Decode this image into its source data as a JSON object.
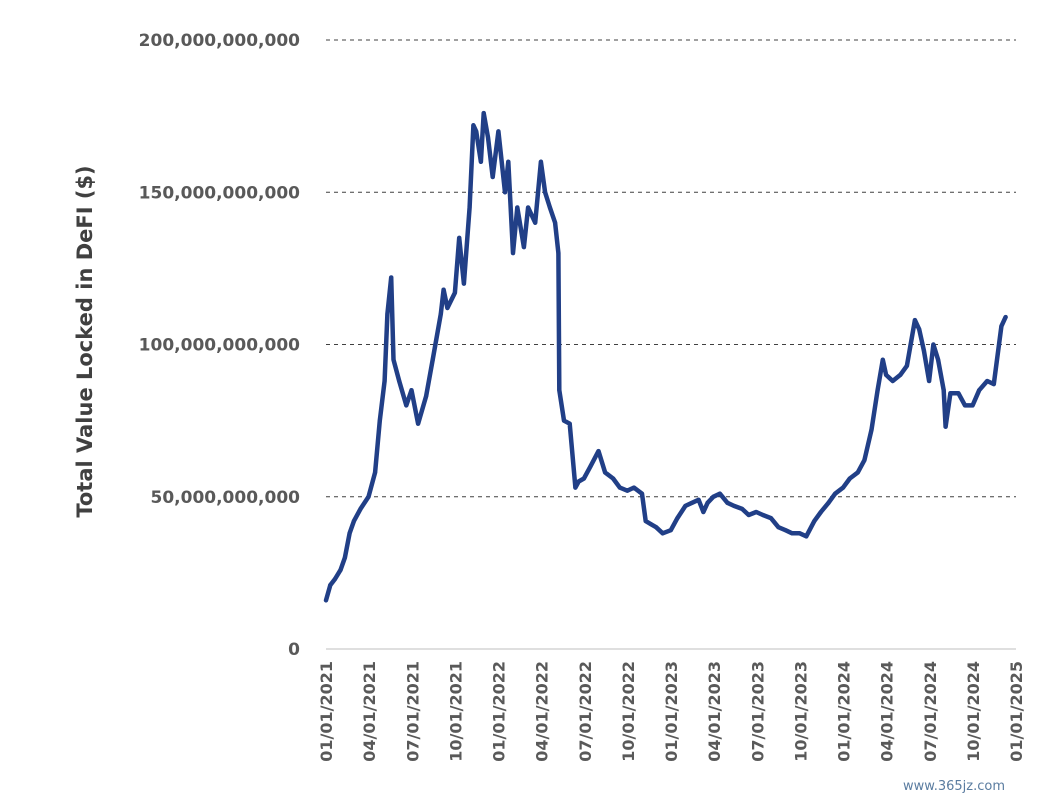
{
  "chart_data": {
    "type": "line",
    "ylabel": "Total Value Locked in DeFI ($)",
    "xlabel": "",
    "title": "",
    "ylim": [
      0,
      200000000000
    ],
    "yticks": [
      {
        "value": 0,
        "label": "0"
      },
      {
        "value": 50000000000,
        "label": "50,000,000,000"
      },
      {
        "value": 100000000000,
        "label": "100,000,000,000"
      },
      {
        "value": 150000000000,
        "label": "150,000,000,000"
      },
      {
        "value": 200000000000,
        "label": "200,000,000,000"
      }
    ],
    "xticks": [
      "01/01/2021",
      "04/01/2021",
      "07/01/2021",
      "10/01/2021",
      "01/01/2022",
      "04/01/2022",
      "07/01/2022",
      "10/01/2022",
      "01/01/2023",
      "04/01/2023",
      "07/01/2023",
      "10/01/2023",
      "01/01/2024",
      "04/01/2024",
      "07/01/2024",
      "10/01/2024",
      "01/01/2025"
    ],
    "xlim": [
      "2021-01-01",
      "2025-01-01"
    ],
    "grid": "horizontal dashed",
    "color": "#213f87",
    "series": [
      {
        "x": [
          "2021-01-01",
          "2021-01-10",
          "2021-01-20",
          "2021-02-01",
          "2021-02-10",
          "2021-02-20",
          "2021-03-01",
          "2021-03-15",
          "2021-04-01",
          "2021-04-15",
          "2021-04-25",
          "2021-05-05",
          "2021-05-11",
          "2021-05-19",
          "2021-05-24",
          "2021-06-05",
          "2021-06-20",
          "2021-07-01",
          "2021-07-15",
          "2021-08-01",
          "2021-08-15",
          "2021-09-01",
          "2021-09-07",
          "2021-09-15",
          "2021-10-01",
          "2021-10-10",
          "2021-10-20",
          "2021-11-01",
          "2021-11-09",
          "2021-11-15",
          "2021-11-25",
          "2021-12-01",
          "2021-12-10",
          "2021-12-20",
          "2022-01-01",
          "2022-01-15",
          "2022-01-22",
          "2022-02-01",
          "2022-02-10",
          "2022-02-24",
          "2022-03-05",
          "2022-03-20",
          "2022-04-01",
          "2022-04-10",
          "2022-04-20",
          "2022-05-01",
          "2022-05-08",
          "2022-05-10",
          "2022-05-20",
          "2022-06-01",
          "2022-06-13",
          "2022-06-20",
          "2022-07-01",
          "2022-07-15",
          "2022-08-01",
          "2022-08-15",
          "2022-09-01",
          "2022-09-15",
          "2022-10-01",
          "2022-10-15",
          "2022-11-01",
          "2022-11-09",
          "2022-11-20",
          "2022-12-01",
          "2022-12-15",
          "2023-01-01",
          "2023-01-15",
          "2023-02-01",
          "2023-02-15",
          "2023-03-01",
          "2023-03-11",
          "2023-03-20",
          "2023-04-01",
          "2023-04-15",
          "2023-05-01",
          "2023-05-15",
          "2023-06-01",
          "2023-06-15",
          "2023-07-01",
          "2023-07-15",
          "2023-08-01",
          "2023-08-17",
          "2023-09-01",
          "2023-09-15",
          "2023-10-01",
          "2023-10-15",
          "2023-11-01",
          "2023-11-15",
          "2023-12-01",
          "2023-12-15",
          "2024-01-01",
          "2024-01-15",
          "2024-02-01",
          "2024-02-15",
          "2024-03-01",
          "2024-03-14",
          "2024-03-25",
          "2024-04-01",
          "2024-04-15",
          "2024-05-01",
          "2024-05-15",
          "2024-06-01",
          "2024-06-10",
          "2024-06-20",
          "2024-07-01",
          "2024-07-10",
          "2024-07-20",
          "2024-08-01",
          "2024-08-05",
          "2024-08-15",
          "2024-09-01",
          "2024-09-15",
          "2024-10-01",
          "2024-10-15",
          "2024-11-01",
          "2024-11-15",
          "2024-12-01",
          "2024-12-10"
        ],
        "y": [
          16000000000,
          21000000000,
          23000000000,
          26000000000,
          30000000000,
          38000000000,
          42000000000,
          46000000000,
          50000000000,
          58000000000,
          75000000000,
          88000000000,
          110000000000,
          122000000000,
          95000000000,
          88000000000,
          80000000000,
          85000000000,
          74000000000,
          83000000000,
          95000000000,
          110000000000,
          118000000000,
          112000000000,
          117000000000,
          135000000000,
          120000000000,
          145000000000,
          172000000000,
          170000000000,
          160000000000,
          176000000000,
          168000000000,
          155000000000,
          170000000000,
          150000000000,
          160000000000,
          130000000000,
          145000000000,
          132000000000,
          145000000000,
          140000000000,
          160000000000,
          150000000000,
          145000000000,
          140000000000,
          130000000000,
          85000000000,
          75000000000,
          74000000000,
          53000000000,
          55000000000,
          56000000000,
          60000000000,
          65000000000,
          58000000000,
          56000000000,
          53000000000,
          52000000000,
          53000000000,
          51000000000,
          42000000000,
          41000000000,
          40000000000,
          38000000000,
          39000000000,
          43000000000,
          47000000000,
          48000000000,
          49000000000,
          45000000000,
          48000000000,
          50000000000,
          51000000000,
          48000000000,
          47000000000,
          46000000000,
          44000000000,
          45000000000,
          44000000000,
          43000000000,
          40000000000,
          39000000000,
          38000000000,
          38000000000,
          37000000000,
          42000000000,
          45000000000,
          48000000000,
          51000000000,
          53000000000,
          56000000000,
          58000000000,
          62000000000,
          72000000000,
          85000000000,
          95000000000,
          90000000000,
          88000000000,
          90000000000,
          93000000000,
          108000000000,
          105000000000,
          98000000000,
          88000000000,
          100000000000,
          95000000000,
          85000000000,
          73000000000,
          84000000000,
          84000000000,
          80000000000,
          80000000000,
          85000000000,
          88000000000,
          87000000000,
          106000000000,
          109000000000
        ]
      }
    ]
  },
  "watermark": "www.365jz.com"
}
